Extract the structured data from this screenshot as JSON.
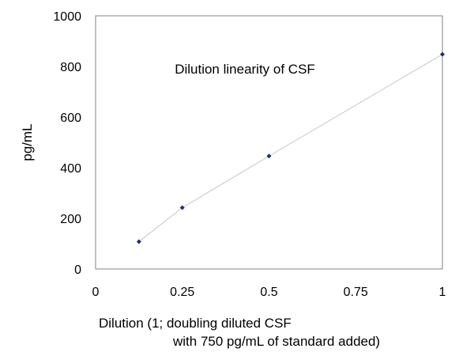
{
  "chart_data": {
    "type": "line",
    "title": "Dilution linearity of CSF",
    "xlabel_lines": [
      "Dilution (1; doubling diluted CSF",
      "with 750 pg/mL of standard added)"
    ],
    "ylabel": "pg/mL",
    "xlim": [
      0,
      1
    ],
    "ylim": [
      0,
      1000
    ],
    "xticks": [
      "0",
      "0.25",
      "0.5",
      "0.75",
      "1"
    ],
    "yticks": [
      "0",
      "200",
      "400",
      "600",
      "800",
      "1000"
    ],
    "grid": false,
    "legend": false,
    "series": [
      {
        "x": [
          0.125,
          0.25,
          0.5,
          1
        ],
        "y": [
          108,
          242,
          446,
          848
        ],
        "marker_color": "#1f2f6b",
        "line_color": "#c8c8c8"
      }
    ]
  }
}
